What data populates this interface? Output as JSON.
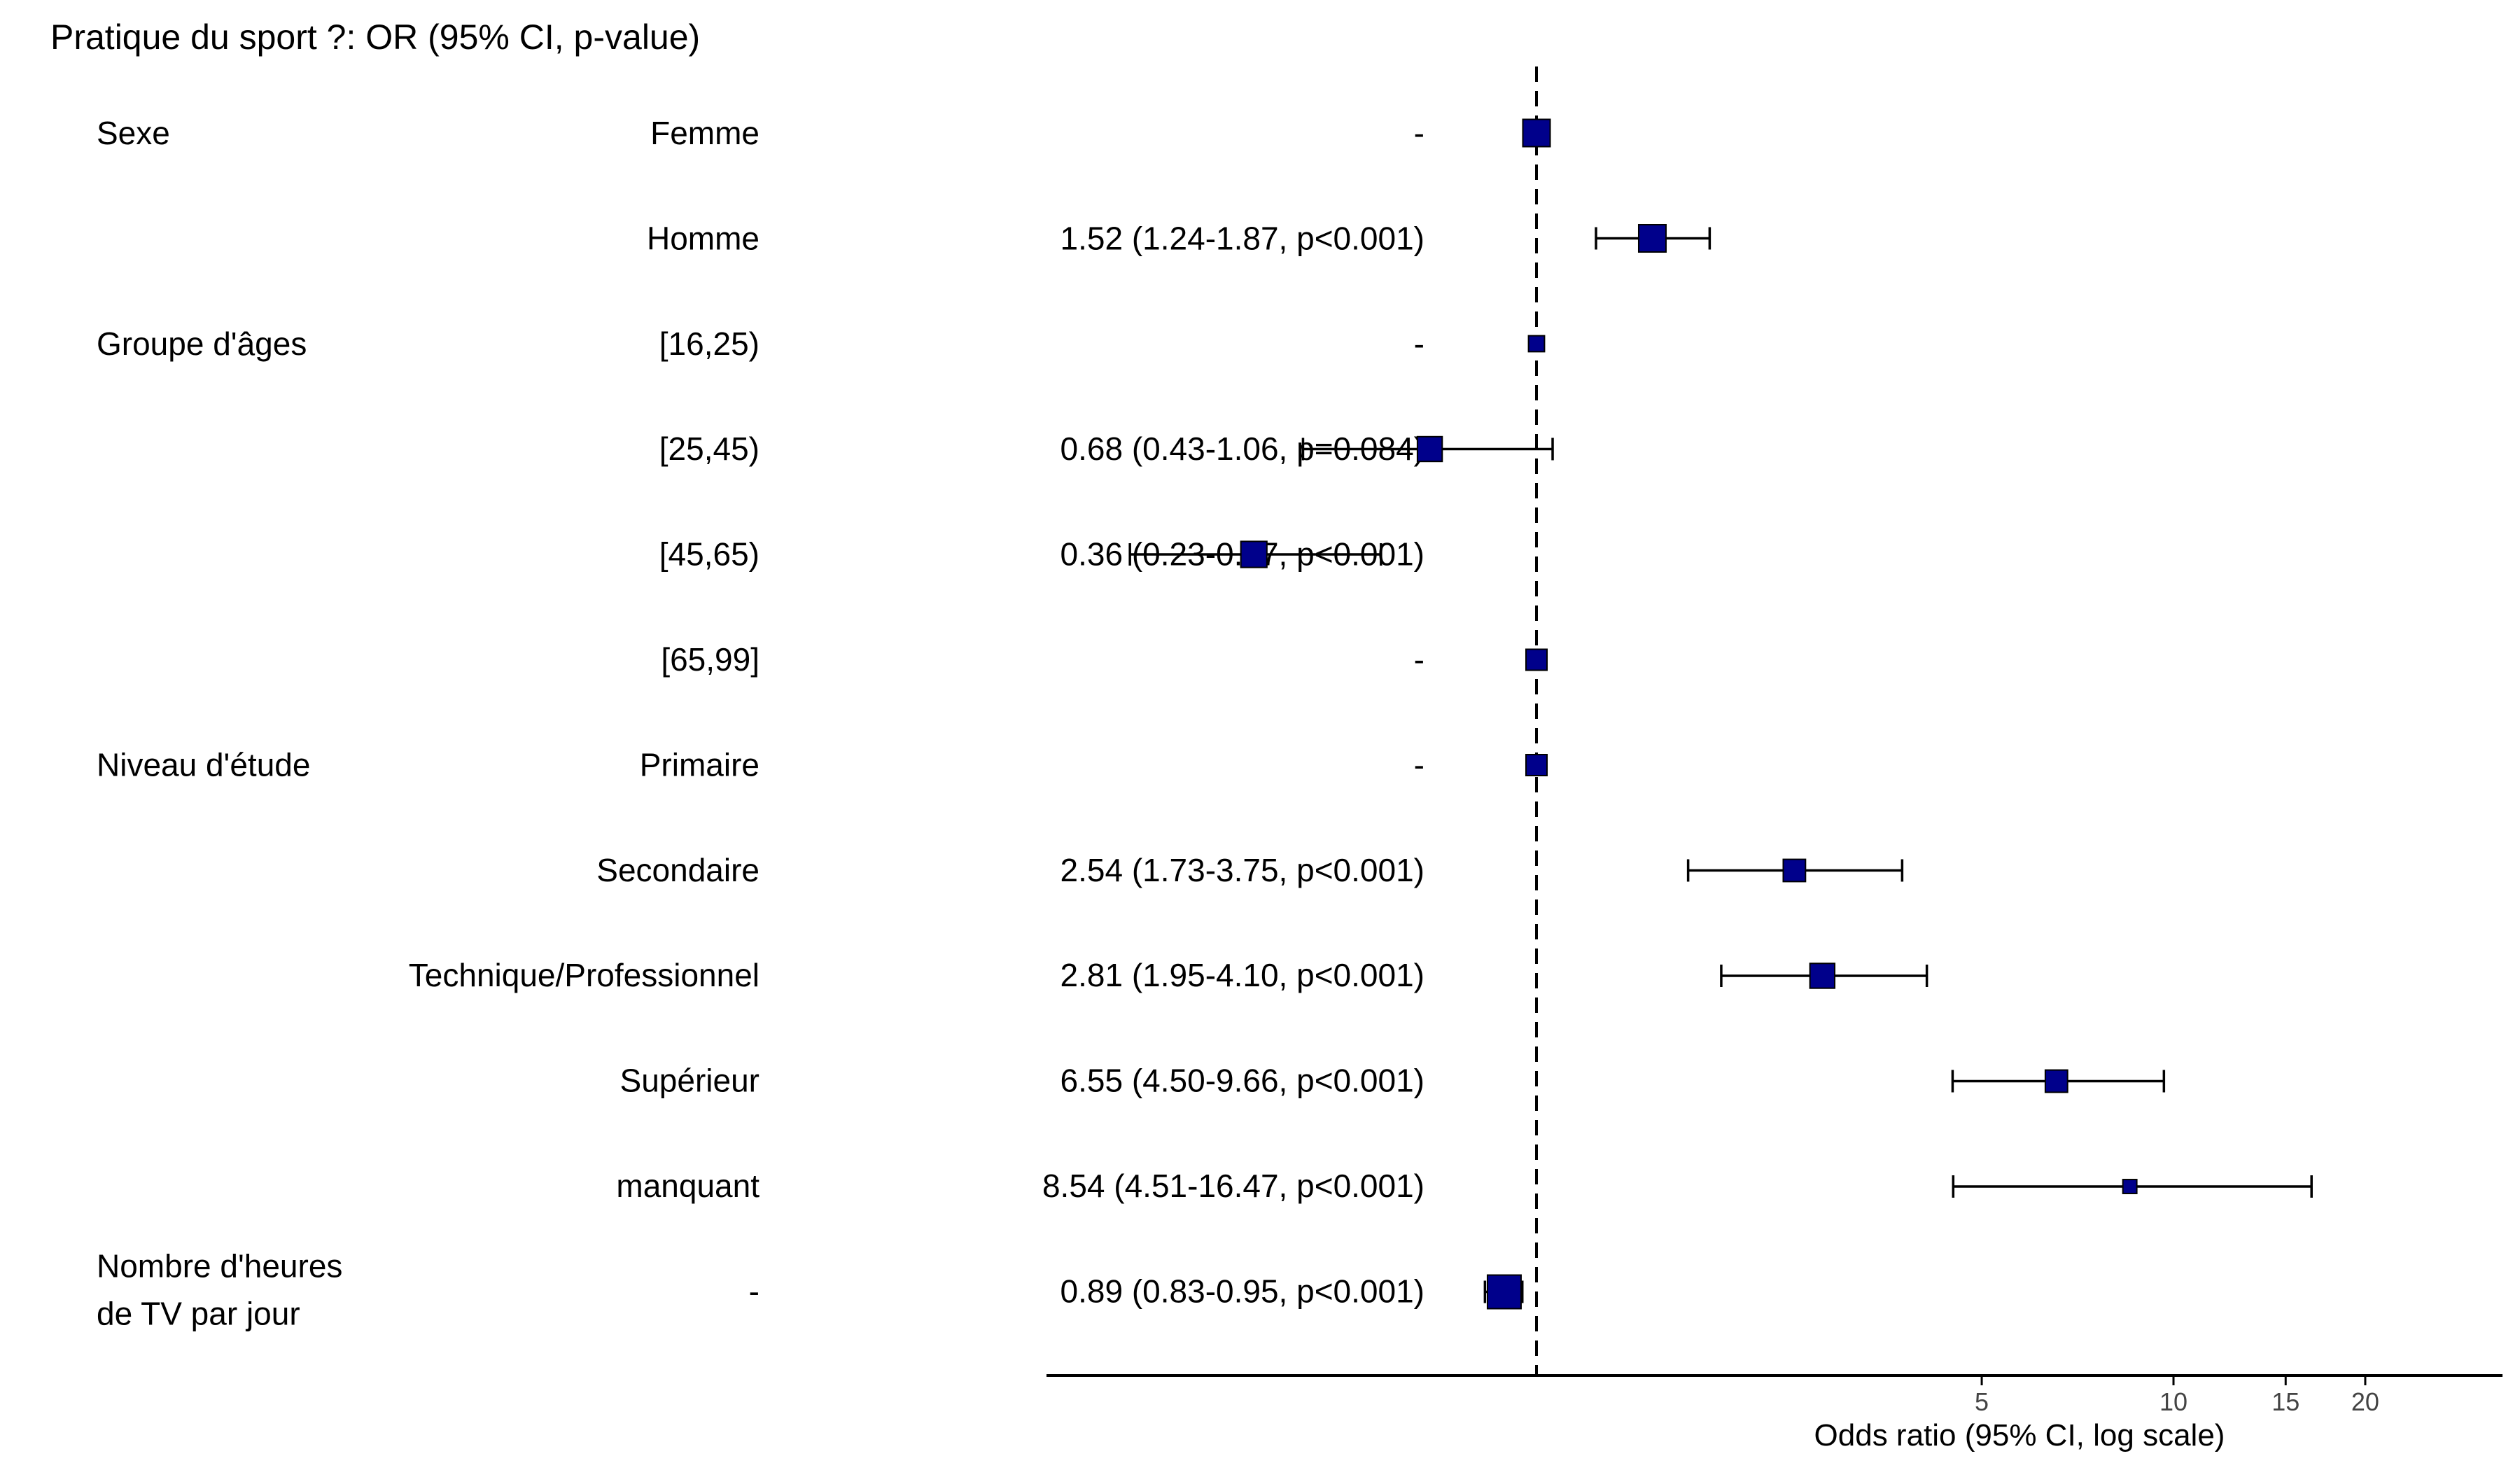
{
  "chart_data": {
    "type": "forest",
    "title": "Pratique du sport ?: OR (95% CI, p-value)",
    "xlabel": "Odds ratio (95% CI, log scale)",
    "x_scale": "log",
    "reference_line": 1,
    "xlim": [
      0.145,
      20
    ],
    "xticks": [
      5,
      10,
      15,
      20
    ],
    "xtick_labels": [
      "5",
      "10",
      "15",
      "20"
    ],
    "marker_color": "#00008B",
    "rows": [
      {
        "variable": "Sexe",
        "level": "Femme",
        "label": "-",
        "or": 1,
        "lo": null,
        "hi": null,
        "weight": 0.75
      },
      {
        "variable": "",
        "level": "Homme",
        "label": "1.52 (1.24-1.87, p<0.001)",
        "or": 1.52,
        "lo": 1.24,
        "hi": 1.87,
        "weight": 0.75
      },
      {
        "variable": "Groupe d'âges",
        "level": "[16,25)",
        "label": "-",
        "or": 1,
        "lo": null,
        "hi": null,
        "weight": 0.3
      },
      {
        "variable": "",
        "level": "[25,45)",
        "label": "0.68 (0.43-1.06, p=0.084)",
        "or": 0.68,
        "lo": 0.43,
        "hi": 1.06,
        "weight": 0.65
      },
      {
        "variable": "",
        "level": "[45,65)",
        "label": "0.36 (0.23-0.57, p<0.001)",
        "or": 0.36,
        "lo": 0.23,
        "hi": 0.57,
        "weight": 0.7
      },
      {
        "variable": "",
        "level": "[65,99]",
        "label": "-",
        "or": 1,
        "lo": null,
        "hi": null,
        "weight": 0.5
      },
      {
        "variable": "Niveau d'étude",
        "level": "Primaire",
        "label": "-",
        "or": 1,
        "lo": null,
        "hi": null,
        "weight": 0.5
      },
      {
        "variable": "",
        "level": "Secondaire",
        "label": "2.54 (1.73-3.75, p<0.001)",
        "or": 2.54,
        "lo": 1.73,
        "hi": 3.75,
        "weight": 0.55
      },
      {
        "variable": "",
        "level": "Technique/Professionnel",
        "label": "2.81 (1.95-4.10, p<0.001)",
        "or": 2.81,
        "lo": 1.95,
        "hi": 4.1,
        "weight": 0.65
      },
      {
        "variable": "",
        "level": "Supérieur",
        "label": "6.55 (4.50-9.66, p<0.001)",
        "or": 6.55,
        "lo": 4.5,
        "hi": 9.66,
        "weight": 0.55
      },
      {
        "variable": "",
        "level": "manquant",
        "label": "8.54 (4.51-16.47, p<0.001)",
        "or": 8.54,
        "lo": 4.51,
        "hi": 16.47,
        "weight": 0.22
      },
      {
        "variable": "Nombre d'heures\nde TV par jour",
        "level": "-",
        "label": "0.89 (0.83-0.95, p<0.001)",
        "or": 0.89,
        "lo": 0.83,
        "hi": 0.95,
        "weight": 1.0
      }
    ]
  }
}
